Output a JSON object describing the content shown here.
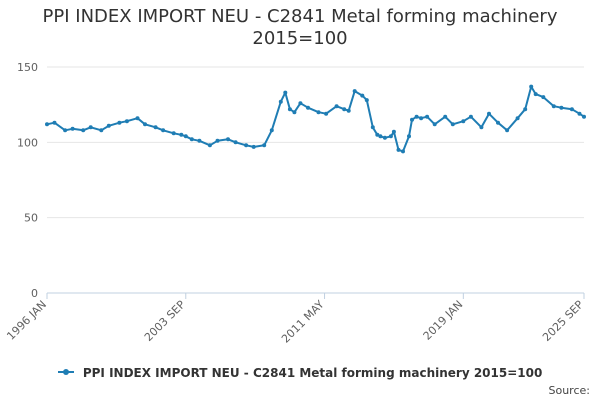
{
  "colors": {
    "series": "#1f7db4",
    "grid": "#e6e6e6",
    "axis": "#c0d0e0",
    "text": "#606060"
  },
  "chart_data": {
    "type": "line",
    "title": "PPI INDEX IMPORT NEU - C2841 Metal forming machinery",
    "subtitle": "2015=100",
    "xlabel": "",
    "ylabel": "",
    "ylim": [
      0,
      150
    ],
    "yticks": [
      "0",
      "50",
      "100",
      "150"
    ],
    "xticks": [
      {
        "label": "1996 JAN",
        "date": "1996-01"
      },
      {
        "label": "2003 SEP",
        "date": "2003-09"
      },
      {
        "label": "2011 MAY",
        "date": "2011-05"
      },
      {
        "label": "2019 JAN",
        "date": "2019-01"
      },
      {
        "label": "2025 SEP",
        "date": "2025-09"
      }
    ],
    "grid": true,
    "legend": "bottom-center",
    "series": [
      {
        "name": "PPI INDEX IMPORT NEU - C2841 Metal forming machinery 2015=100",
        "x": [
          "1996-01",
          "1996-06",
          "1997-01",
          "1997-06",
          "1998-01",
          "1998-06",
          "1999-01",
          "1999-06",
          "2000-01",
          "2000-06",
          "2001-01",
          "2001-06",
          "2002-01",
          "2002-06",
          "2003-01",
          "2003-06",
          "2003-09",
          "2004-01",
          "2004-06",
          "2005-01",
          "2005-06",
          "2006-01",
          "2006-06",
          "2007-01",
          "2007-06",
          "2008-01",
          "2008-06",
          "2008-12",
          "2009-03",
          "2009-06",
          "2009-09",
          "2010-01",
          "2010-06",
          "2011-01",
          "2011-06",
          "2012-01",
          "2012-06",
          "2012-09",
          "2013-01",
          "2013-06",
          "2013-09",
          "2014-01",
          "2014-04",
          "2014-06",
          "2014-09",
          "2015-01",
          "2015-03",
          "2015-06",
          "2015-09",
          "2016-01",
          "2016-03",
          "2016-06",
          "2016-09",
          "2017-01",
          "2017-06",
          "2018-01",
          "2018-06",
          "2019-01",
          "2019-06",
          "2020-01",
          "2020-06",
          "2020-12",
          "2021-06",
          "2022-01",
          "2022-06",
          "2022-10",
          "2023-01",
          "2023-06",
          "2024-01",
          "2024-06",
          "2025-01",
          "2025-06",
          "2025-09"
        ],
        "values": [
          112,
          113,
          108,
          109,
          108,
          110,
          108,
          111,
          113,
          114,
          116,
          112,
          110,
          108,
          106,
          105,
          104,
          102,
          101,
          98,
          101,
          102,
          100,
          98,
          97,
          98,
          108,
          127,
          133,
          122,
          120,
          126,
          123,
          120,
          119,
          124,
          122,
          121,
          134,
          131,
          128,
          110,
          105,
          104,
          103,
          104,
          107,
          95,
          94,
          104,
          115,
          117,
          116,
          117,
          112,
          117,
          112,
          114,
          117,
          110,
          119,
          113,
          108,
          116,
          122,
          137,
          132,
          130,
          124,
          123,
          122,
          119,
          117
        ]
      }
    ],
    "source": "Source:"
  }
}
